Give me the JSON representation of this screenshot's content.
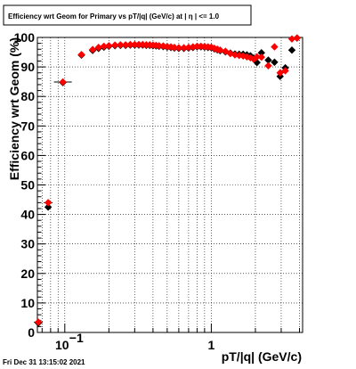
{
  "chart_data": {
    "type": "scatter",
    "title": "Efficiency wrt Geom for Primary vs pT/|q| (GeV/c) at |  η | <= 1.0",
    "xlabel": "pT/|q| (GeV/c)",
    "ylabel": "Efficiency wrt Geom (%)",
    "xscale": "log",
    "xlim": [
      0.065,
      4.2
    ],
    "ylim": [
      0,
      100
    ],
    "grid": true,
    "legend": "none",
    "x_tick_labels": [
      {
        "value": 0.1,
        "base": "10",
        "exp": "−1"
      },
      {
        "value": 1,
        "text": "1"
      }
    ],
    "y_ticks": [
      0,
      10,
      20,
      30,
      40,
      50,
      60,
      70,
      80,
      90,
      100
    ],
    "series": [
      {
        "marker": "diamond",
        "color": "#000000",
        "points": [
          [
            0.066,
            3.2
          ],
          [
            0.077,
            42.5
          ],
          [
            0.097,
            84.7
          ],
          [
            0.13,
            94.0
          ],
          [
            0.155,
            95.6
          ],
          [
            0.17,
            96.3
          ],
          [
            0.185,
            96.7
          ],
          [
            0.2,
            97.0
          ],
          [
            0.22,
            97.2
          ],
          [
            0.24,
            97.3
          ],
          [
            0.26,
            97.3
          ],
          [
            0.28,
            97.4
          ],
          [
            0.3,
            97.4
          ],
          [
            0.32,
            97.4
          ],
          [
            0.34,
            97.4
          ],
          [
            0.36,
            97.3
          ],
          [
            0.38,
            97.3
          ],
          [
            0.4,
            97.2
          ],
          [
            0.42,
            97.1
          ],
          [
            0.44,
            97.0
          ],
          [
            0.47,
            96.9
          ],
          [
            0.5,
            96.7
          ],
          [
            0.53,
            96.6
          ],
          [
            0.56,
            96.4
          ],
          [
            0.6,
            96.3
          ],
          [
            0.65,
            96.3
          ],
          [
            0.7,
            96.4
          ],
          [
            0.75,
            96.6
          ],
          [
            0.8,
            96.8
          ],
          [
            0.85,
            96.8
          ],
          [
            0.9,
            96.7
          ],
          [
            0.95,
            96.6
          ],
          [
            1.0,
            96.5
          ],
          [
            1.05,
            96.1
          ],
          [
            1.1,
            95.8
          ],
          [
            1.15,
            95.5
          ],
          [
            1.25,
            95.1
          ],
          [
            1.35,
            94.7
          ],
          [
            1.45,
            94.4
          ],
          [
            1.55,
            94.3
          ],
          [
            1.65,
            94.3
          ],
          [
            1.75,
            94.1
          ],
          [
            1.85,
            93.8
          ],
          [
            1.95,
            93.0
          ],
          [
            2.05,
            91.5
          ],
          [
            2.2,
            94.8
          ],
          [
            2.45,
            92.3
          ],
          [
            2.7,
            91.6
          ],
          [
            2.95,
            86.8
          ],
          [
            3.2,
            89.7
          ],
          [
            3.55,
            95.7
          ],
          [
            3.85,
            99.8
          ]
        ]
      },
      {
        "marker": "diamond",
        "color": "#ff0000",
        "points": [
          [
            0.066,
            3.5
          ],
          [
            0.077,
            44.0
          ],
          [
            0.097,
            84.9
          ],
          [
            0.13,
            94.2
          ],
          [
            0.155,
            95.9
          ],
          [
            0.17,
            96.6
          ],
          [
            0.185,
            97.0
          ],
          [
            0.2,
            97.2
          ],
          [
            0.22,
            97.4
          ],
          [
            0.24,
            97.5
          ],
          [
            0.26,
            97.5
          ],
          [
            0.28,
            97.6
          ],
          [
            0.3,
            97.6
          ],
          [
            0.32,
            97.6
          ],
          [
            0.34,
            97.6
          ],
          [
            0.36,
            97.5
          ],
          [
            0.38,
            97.5
          ],
          [
            0.4,
            97.4
          ],
          [
            0.42,
            97.3
          ],
          [
            0.44,
            97.2
          ],
          [
            0.47,
            97.1
          ],
          [
            0.5,
            96.9
          ],
          [
            0.53,
            96.8
          ],
          [
            0.56,
            96.6
          ],
          [
            0.6,
            96.5
          ],
          [
            0.65,
            96.5
          ],
          [
            0.7,
            96.6
          ],
          [
            0.75,
            96.8
          ],
          [
            0.8,
            97.0
          ],
          [
            0.85,
            97.0
          ],
          [
            0.9,
            96.9
          ],
          [
            0.95,
            96.8
          ],
          [
            1.0,
            96.7
          ],
          [
            1.05,
            96.3
          ],
          [
            1.1,
            96.0
          ],
          [
            1.15,
            95.7
          ],
          [
            1.25,
            95.3
          ],
          [
            1.35,
            94.5
          ],
          [
            1.45,
            94.1
          ],
          [
            1.55,
            93.9
          ],
          [
            1.65,
            93.7
          ],
          [
            1.75,
            93.4
          ],
          [
            1.85,
            93.1
          ],
          [
            1.95,
            92.6
          ],
          [
            2.05,
            93.4
          ],
          [
            2.2,
            93.3
          ],
          [
            2.45,
            90.4
          ],
          [
            2.7,
            96.8
          ],
          [
            2.95,
            88.0
          ],
          [
            3.2,
            88.7
          ],
          [
            3.55,
            99.5
          ],
          [
            3.85,
            99.8
          ]
        ]
      }
    ],
    "footer": "Fri Dec 31 13:15:02 2021"
  }
}
